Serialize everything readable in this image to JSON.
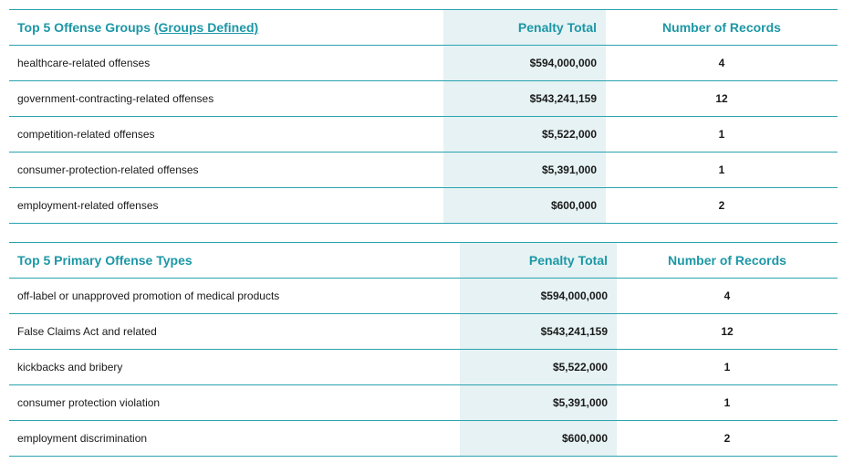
{
  "table1": {
    "title": "Top 5 Offense Groups",
    "link_text": "(Groups Defined)",
    "penalty_header": "Penalty Total",
    "records_header": "Number of Records",
    "rows": [
      {
        "name": "healthcare-related offenses",
        "penalty": "$594,000,000",
        "records": "4"
      },
      {
        "name": "government-contracting-related offenses",
        "penalty": "$543,241,159",
        "records": "12"
      },
      {
        "name": "competition-related offenses",
        "penalty": "$5,522,000",
        "records": "1"
      },
      {
        "name": "consumer-protection-related offenses",
        "penalty": "$5,391,000",
        "records": "1"
      },
      {
        "name": "employment-related offenses",
        "penalty": "$600,000",
        "records": "2"
      }
    ]
  },
  "table2": {
    "title": "Top 5 Primary Offense Types",
    "penalty_header": "Penalty Total",
    "records_header": "Number of Records",
    "rows": [
      {
        "name": "off-label or unapproved promotion of medical products",
        "penalty": "$594,000,000",
        "records": "4"
      },
      {
        "name": "False Claims Act and related",
        "penalty": "$543,241,159",
        "records": "12"
      },
      {
        "name": "kickbacks and bribery",
        "penalty": "$5,522,000",
        "records": "1"
      },
      {
        "name": "consumer protection violation",
        "penalty": "$5,391,000",
        "records": "1"
      },
      {
        "name": "employment discrimination",
        "penalty": "$600,000",
        "records": "2"
      }
    ]
  }
}
